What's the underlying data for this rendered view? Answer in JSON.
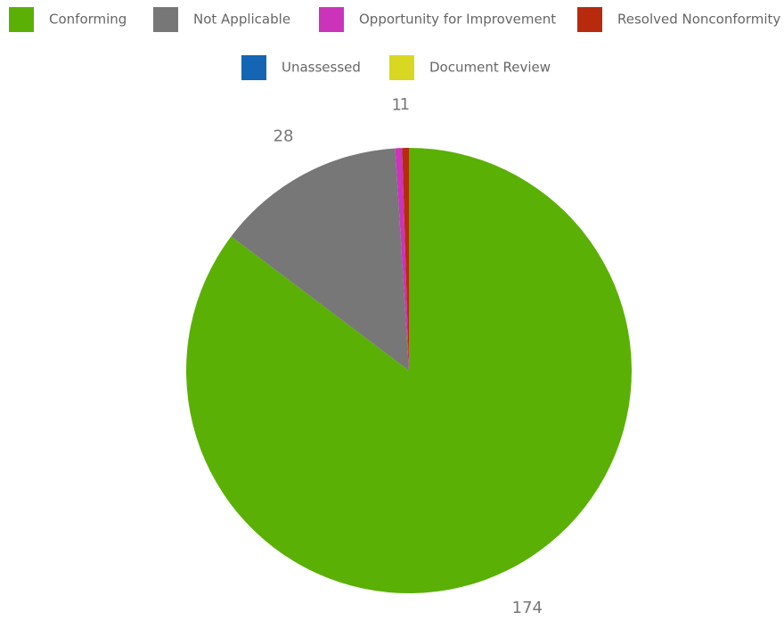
{
  "chart_data": {
    "type": "pie",
    "categories": [
      "Conforming",
      "Not Applicable",
      "Opportunity for Improvement",
      "Resolved Nonconformity",
      "Unassessed",
      "Document Review"
    ],
    "values": [
      174,
      28,
      1,
      1,
      0,
      0
    ],
    "colors": [
      "#5bb005",
      "#777777",
      "#cc33bb",
      "#b82a0e",
      "#1565b5",
      "#d8d822"
    ]
  }
}
